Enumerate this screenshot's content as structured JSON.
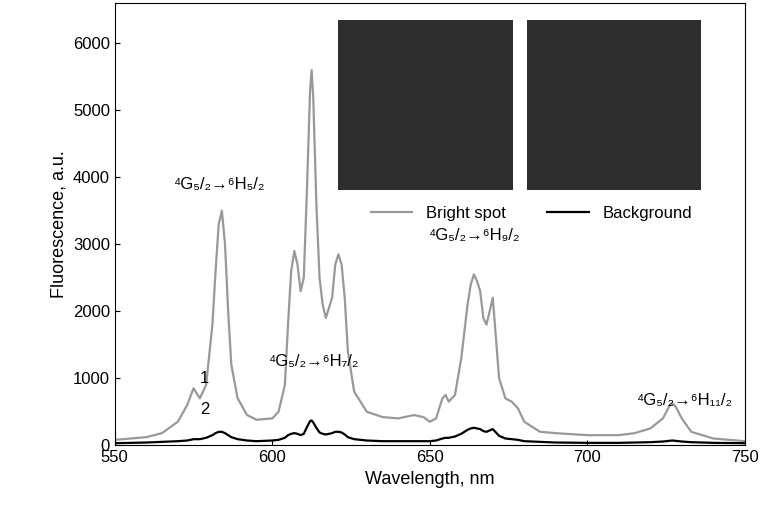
{
  "chart_data": {
    "type": "line",
    "x_label": "Wavelength, nm",
    "y_label": "Fluorescence, a.u.",
    "x": [
      550,
      560,
      565,
      570,
      573,
      575,
      577,
      579,
      581,
      582,
      583,
      584,
      585,
      586,
      587,
      589,
      592,
      595,
      600,
      602,
      604,
      605,
      606,
      607,
      608,
      609,
      610,
      611,
      612,
      612.5,
      613,
      614,
      615,
      616,
      617,
      619,
      620,
      621,
      622,
      623,
      624,
      626,
      630,
      635,
      640,
      645,
      648,
      650,
      652,
      654,
      655,
      656,
      658,
      660,
      662,
      663,
      664,
      665,
      666,
      667,
      668,
      669,
      670,
      671,
      672,
      674,
      676,
      678,
      680,
      685,
      690,
      700,
      710,
      715,
      720,
      724,
      726,
      727,
      728,
      730,
      733,
      740,
      750
    ],
    "series": [
      {
        "name": "Bright spot",
        "color": "#999999",
        "values": [
          80,
          120,
          180,
          350,
          600,
          850,
          700,
          900,
          1800,
          2600,
          3300,
          3500,
          3000,
          2000,
          1200,
          700,
          450,
          380,
          400,
          500,
          900,
          1800,
          2600,
          2900,
          2700,
          2300,
          2500,
          3800,
          5300,
          5600,
          5200,
          3600,
          2500,
          2100,
          1900,
          2200,
          2700,
          2850,
          2700,
          2200,
          1400,
          800,
          500,
          420,
          400,
          450,
          420,
          350,
          400,
          700,
          750,
          650,
          750,
          1300,
          2100,
          2400,
          2550,
          2450,
          2300,
          1900,
          1800,
          2000,
          2200,
          1600,
          1000,
          700,
          650,
          550,
          350,
          200,
          180,
          150,
          150,
          180,
          250,
          400,
          580,
          630,
          580,
          400,
          200,
          100,
          60
        ]
      },
      {
        "name": "Background",
        "color": "#000000",
        "values": [
          30,
          40,
          50,
          60,
          70,
          90,
          90,
          110,
          150,
          180,
          200,
          200,
          180,
          150,
          120,
          90,
          70,
          60,
          70,
          80,
          110,
          150,
          170,
          180,
          170,
          150,
          170,
          270,
          360,
          370,
          340,
          260,
          190,
          170,
          160,
          180,
          200,
          200,
          190,
          160,
          120,
          90,
          70,
          60,
          60,
          60,
          60,
          60,
          70,
          100,
          110,
          110,
          130,
          170,
          230,
          250,
          260,
          250,
          240,
          210,
          200,
          220,
          240,
          190,
          140,
          100,
          90,
          80,
          60,
          50,
          40,
          35,
          35,
          40,
          45,
          55,
          65,
          70,
          65,
          55,
          45,
          35,
          30
        ]
      }
    ],
    "annotations": [
      "⁴G₅/₂→⁶H₅/₂",
      "⁴G₅/₂→⁶H₇/₂",
      "⁴G₅/₂→⁶H₉/₂",
      "⁴G₅/₂→⁶H₁₁/₂",
      "1",
      "2"
    ],
    "xlim": [
      550,
      750
    ],
    "xticks": [
      550,
      600,
      650,
      700,
      750
    ],
    "ylim": [
      0,
      6600
    ],
    "yticks": [
      0,
      1000,
      2000,
      3000,
      4000,
      5000,
      6000
    ],
    "legend": "upper right",
    "grid": false
  }
}
